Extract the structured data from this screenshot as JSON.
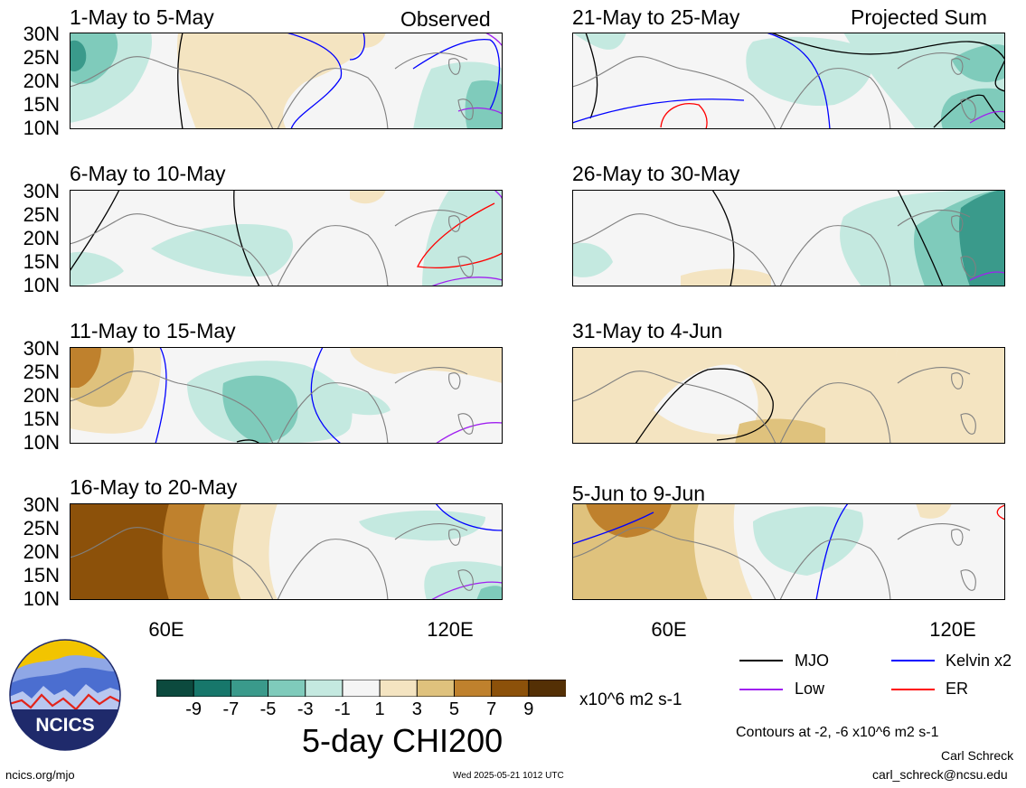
{
  "panels_left": [
    {
      "title": "1-May to 5-May",
      "corner": "Observed"
    },
    {
      "title": "6-May to 10-May",
      "corner": ""
    },
    {
      "title": "11-May to 15-May",
      "corner": ""
    },
    {
      "title": "16-May to 20-May",
      "corner": ""
    }
  ],
  "panels_right": [
    {
      "title": "21-May to 25-May",
      "corner": "Projected Sum"
    },
    {
      "title": "26-May to 30-May",
      "corner": ""
    },
    {
      "title": "31-May to 4-Jun",
      "corner": ""
    },
    {
      "title": "5-Jun to 9-Jun",
      "corner": ""
    }
  ],
  "lat_labels": [
    "30N",
    "25N",
    "20N",
    "15N",
    "10N"
  ],
  "lon_labels": [
    "60E",
    "120E"
  ],
  "colorbar": {
    "title": "5-day CHI200",
    "units": "x10^6 m2 s-1",
    "labels": [
      "-9",
      "-7",
      "-5",
      "-3",
      "-1",
      "1",
      "3",
      "5",
      "7",
      "9"
    ],
    "colors": [
      "#0c4a3e",
      "#17776b",
      "#3a9a8b",
      "#7fcbbb",
      "#c4e9e0",
      "#f5f5f5",
      "#f4e4c1",
      "#dfc27d",
      "#bf812d",
      "#8c510a",
      "#543005"
    ]
  },
  "legend": {
    "items": [
      {
        "label": "MJO",
        "color": "#000000"
      },
      {
        "label": "Kelvin x2",
        "color": "#0000ff"
      },
      {
        "label": "Low",
        "color": "#a020f0"
      },
      {
        "label": "ER",
        "color": "#ff0000"
      }
    ],
    "contours_note": "Contours at -2, -6 x10^6 m2 s-1"
  },
  "logo": {
    "text": "NCICS"
  },
  "footer": {
    "site": "ncics.org/mjo",
    "timestamp": "Wed 2025-05-21 1012 UTC",
    "author": "Carl Schreck",
    "email": "carl_schreck@ncsu.edu"
  }
}
